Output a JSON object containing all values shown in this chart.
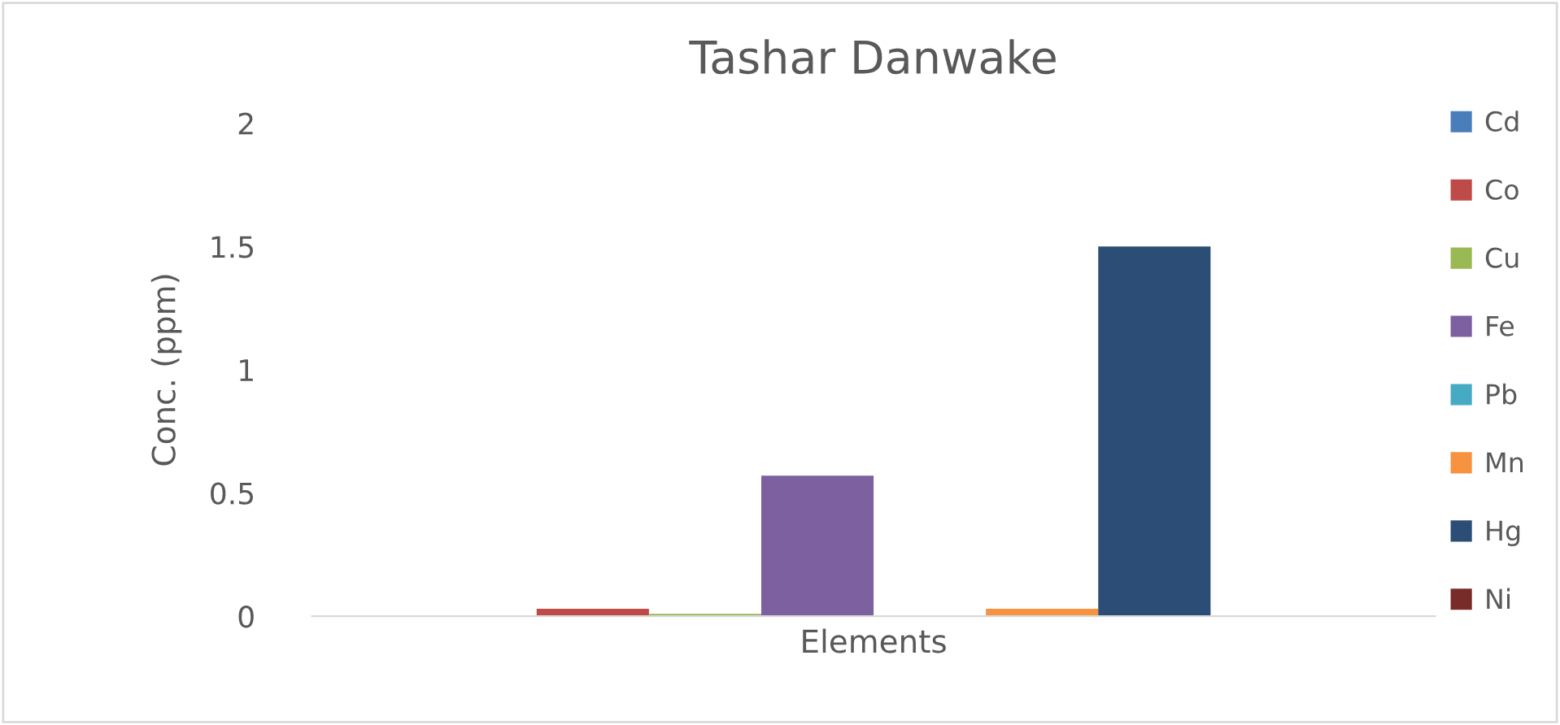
{
  "chart_data": {
    "type": "bar",
    "title": "Tashar Danwake",
    "xlabel": "Elements",
    "ylabel": "Conc. (ppm)",
    "categories": [
      null
    ],
    "series": [
      {
        "name": "Cd",
        "color": "#4a7ebb",
        "values": [
          0
        ]
      },
      {
        "name": "Co",
        "color": "#be4b48",
        "values": [
          0.03
        ]
      },
      {
        "name": "Cu",
        "color": "#98b954",
        "values": [
          0.01
        ]
      },
      {
        "name": "Fe",
        "color": "#7d60a0",
        "values": [
          0.57
        ]
      },
      {
        "name": "Pb",
        "color": "#46aac5",
        "values": [
          0
        ]
      },
      {
        "name": "Mn",
        "color": "#f69240",
        "values": [
          0.03
        ]
      },
      {
        "name": "Hg",
        "color": "#2c4d75",
        "values": [
          1.5
        ]
      },
      {
        "name": "Ni",
        "color": "#772c2a",
        "values": [
          0
        ]
      }
    ],
    "ylim": [
      0,
      2
    ],
    "yticks": [
      0,
      0.5,
      1,
      1.5,
      2
    ],
    "grid": false,
    "legend": "right"
  }
}
